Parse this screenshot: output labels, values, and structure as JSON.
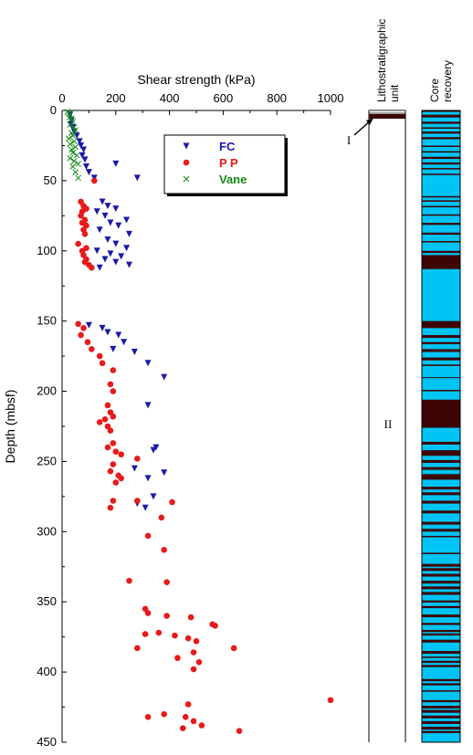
{
  "chart_data": {
    "type": "scatter",
    "xlabel": "Shear strength (kPa)",
    "ylabel": "Depth (mbsf)",
    "xlim": [
      0,
      1000
    ],
    "ylim": [
      0,
      450
    ],
    "x_ticks": [
      "0",
      "200",
      "400",
      "600",
      "800",
      "1000"
    ],
    "y_ticks": [
      "0",
      "50",
      "100",
      "150",
      "200",
      "250",
      "300",
      "350",
      "400",
      "450"
    ],
    "legend_position": "top-center",
    "series": [
      {
        "name": "FC",
        "marker": "triangle-down",
        "color": "#1a1aa8",
        "points": [
          [
            30,
            3
          ],
          [
            35,
            7
          ],
          [
            32,
            10
          ],
          [
            40,
            12
          ],
          [
            45,
            15
          ],
          [
            55,
            18
          ],
          [
            65,
            22
          ],
          [
            70,
            25
          ],
          [
            80,
            28
          ],
          [
            75,
            32
          ],
          [
            85,
            35
          ],
          [
            90,
            40
          ],
          [
            100,
            44
          ],
          [
            120,
            48
          ],
          [
            200,
            38
          ],
          [
            280,
            48
          ],
          [
            150,
            65
          ],
          [
            170,
            68
          ],
          [
            200,
            70
          ],
          [
            130,
            72
          ],
          [
            160,
            75
          ],
          [
            240,
            78
          ],
          [
            180,
            80
          ],
          [
            210,
            82
          ],
          [
            140,
            85
          ],
          [
            250,
            88
          ],
          [
            170,
            92
          ],
          [
            200,
            95
          ],
          [
            240,
            98
          ],
          [
            130,
            100
          ],
          [
            180,
            102
          ],
          [
            220,
            104
          ],
          [
            160,
            106
          ],
          [
            200,
            108
          ],
          [
            250,
            110
          ],
          [
            140,
            112
          ],
          [
            100,
            153
          ],
          [
            150,
            155
          ],
          [
            170,
            158
          ],
          [
            210,
            160
          ],
          [
            230,
            165
          ],
          [
            190,
            170
          ],
          [
            270,
            172
          ],
          [
            320,
            180
          ],
          [
            380,
            190
          ],
          [
            320,
            210
          ],
          [
            350,
            240
          ],
          [
            340,
            242
          ],
          [
            270,
            255
          ],
          [
            380,
            258
          ],
          [
            320,
            262
          ],
          [
            340,
            275
          ],
          [
            280,
            280
          ],
          [
            310,
            283
          ]
        ]
      },
      {
        "name": "P P",
        "marker": "circle",
        "color": "#e81a1a",
        "points": [
          [
            120,
            50
          ],
          [
            70,
            65
          ],
          [
            80,
            68
          ],
          [
            90,
            70
          ],
          [
            75,
            72
          ],
          [
            70,
            75
          ],
          [
            85,
            78
          ],
          [
            75,
            80
          ],
          [
            90,
            82
          ],
          [
            80,
            85
          ],
          [
            85,
            88
          ],
          [
            60,
            95
          ],
          [
            90,
            98
          ],
          [
            75,
            100
          ],
          [
            80,
            103
          ],
          [
            90,
            106
          ],
          [
            85,
            108
          ],
          [
            100,
            110
          ],
          [
            110,
            112
          ],
          [
            60,
            152
          ],
          [
            80,
            155
          ],
          [
            70,
            160
          ],
          [
            95,
            165
          ],
          [
            110,
            170
          ],
          [
            140,
            175
          ],
          [
            150,
            180
          ],
          [
            190,
            185
          ],
          [
            180,
            195
          ],
          [
            190,
            200
          ],
          [
            170,
            210
          ],
          [
            180,
            215
          ],
          [
            190,
            218
          ],
          [
            160,
            220
          ],
          [
            140,
            222
          ],
          [
            170,
            225
          ],
          [
            180,
            228
          ],
          [
            190,
            237
          ],
          [
            170,
            240
          ],
          [
            200,
            243
          ],
          [
            220,
            245
          ],
          [
            280,
            248
          ],
          [
            190,
            252
          ],
          [
            180,
            257
          ],
          [
            210,
            260
          ],
          [
            220,
            262
          ],
          [
            200,
            265
          ],
          [
            190,
            278
          ],
          [
            180,
            283
          ],
          [
            280,
            278
          ],
          [
            410,
            279
          ],
          [
            370,
            290
          ],
          [
            320,
            303
          ],
          [
            380,
            313
          ],
          [
            250,
            335
          ],
          [
            390,
            336
          ],
          [
            310,
            355
          ],
          [
            320,
            358
          ],
          [
            390,
            360
          ],
          [
            480,
            361
          ],
          [
            560,
            366
          ],
          [
            570,
            367
          ],
          [
            360,
            372
          ],
          [
            310,
            373
          ],
          [
            420,
            374
          ],
          [
            470,
            376
          ],
          [
            500,
            378
          ],
          [
            280,
            383
          ],
          [
            640,
            383
          ],
          [
            490,
            386
          ],
          [
            430,
            390
          ],
          [
            510,
            393
          ],
          [
            490,
            398
          ],
          [
            1000,
            420
          ],
          [
            470,
            423
          ],
          [
            380,
            430
          ],
          [
            320,
            432
          ],
          [
            460,
            432
          ],
          [
            490,
            435
          ],
          [
            520,
            438
          ],
          [
            450,
            440
          ],
          [
            660,
            442
          ]
        ]
      },
      {
        "name": "Vane",
        "marker": "x",
        "color": "#138a13",
        "points": [
          [
            20,
            1
          ],
          [
            25,
            2
          ],
          [
            30,
            3
          ],
          [
            28,
            5
          ],
          [
            35,
            6
          ],
          [
            40,
            8
          ],
          [
            30,
            10
          ],
          [
            45,
            12
          ],
          [
            50,
            14
          ],
          [
            35,
            16
          ],
          [
            40,
            18
          ],
          [
            25,
            20
          ],
          [
            45,
            22
          ],
          [
            30,
            24
          ],
          [
            50,
            26
          ],
          [
            35,
            28
          ],
          [
            40,
            30
          ],
          [
            55,
            32
          ],
          [
            30,
            34
          ],
          [
            45,
            36
          ],
          [
            60,
            38
          ],
          [
            40,
            40
          ],
          [
            50,
            44
          ],
          [
            60,
            48
          ]
        ]
      }
    ],
    "lithostratigraphic_column": {
      "title": [
        "Lithostratigraphic",
        "unit"
      ],
      "units": [
        "I",
        "II"
      ],
      "unit_I_depth": [
        0,
        4
      ]
    },
    "core_recovery": {
      "title": [
        "Core",
        "recovery"
      ],
      "recovered_color": "#3d0505",
      "gap_color": "#00c4f5",
      "recovered_intervals": [
        [
          0,
          1
        ],
        [
          3,
          5
        ],
        [
          8,
          9.5
        ],
        [
          12,
          13
        ],
        [
          15,
          16.5
        ],
        [
          19,
          20.5
        ],
        [
          25,
          26
        ],
        [
          29,
          30
        ],
        [
          33,
          34.5
        ],
        [
          37,
          38.5
        ],
        [
          41,
          42
        ],
        [
          45,
          46
        ],
        [
          61,
          62
        ],
        [
          64,
          65
        ],
        [
          68,
          69
        ],
        [
          74,
          75
        ],
        [
          80,
          81.5
        ],
        [
          87,
          88.5
        ],
        [
          93,
          94
        ],
        [
          100,
          101.5
        ],
        [
          103,
          113
        ],
        [
          150,
          155
        ],
        [
          160,
          162
        ],
        [
          165,
          166.5
        ],
        [
          170,
          172
        ],
        [
          176,
          178
        ],
        [
          181,
          182
        ],
        [
          190,
          190.5
        ],
        [
          199,
          200
        ],
        [
          206,
          226
        ],
        [
          236,
          238
        ],
        [
          242,
          246
        ],
        [
          249,
          251
        ],
        [
          254,
          256
        ],
        [
          259,
          263
        ],
        [
          268,
          270
        ],
        [
          272,
          274
        ],
        [
          278,
          280
        ],
        [
          285,
          287
        ],
        [
          293,
          295
        ],
        [
          298,
          300
        ],
        [
          303,
          304
        ],
        [
          315,
          316
        ],
        [
          323,
          325
        ],
        [
          326,
          328
        ],
        [
          330,
          332
        ],
        [
          335,
          337
        ],
        [
          339,
          341
        ],
        [
          343,
          345
        ],
        [
          349,
          350.5
        ],
        [
          353,
          354.5
        ],
        [
          359,
          361
        ],
        [
          365,
          366.5
        ],
        [
          370,
          371.5
        ],
        [
          372.5,
          374
        ],
        [
          377,
          379
        ],
        [
          385,
          387
        ],
        [
          389,
          390
        ],
        [
          392,
          393.5
        ],
        [
          395,
          396.5
        ],
        [
          405,
          406.5
        ],
        [
          408,
          409.5
        ],
        [
          413,
          414
        ],
        [
          420,
          421.5
        ],
        [
          424,
          426
        ],
        [
          427,
          429
        ],
        [
          431,
          433
        ],
        [
          435,
          437
        ],
        [
          439,
          441
        ],
        [
          442,
          443.5
        ]
      ]
    }
  }
}
